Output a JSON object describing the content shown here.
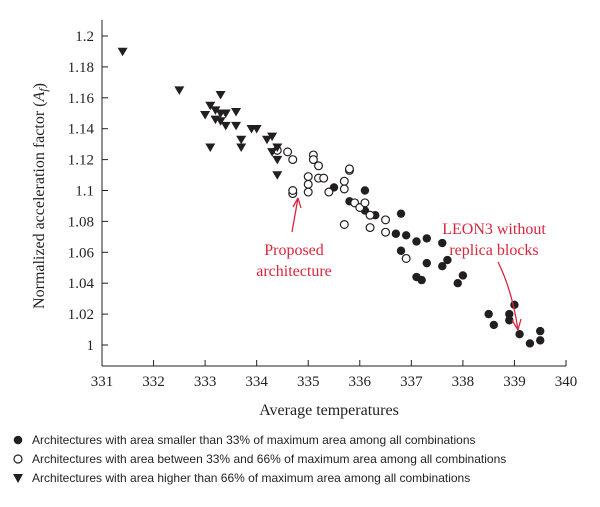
{
  "chart_data": {
    "type": "scatter",
    "xlabel": "Average temperatures",
    "ylabel": "Normalized acceleration factor (A_f)",
    "xlim": [
      331,
      340
    ],
    "ylim": [
      0.99,
      1.2
    ],
    "x_ticks": [
      "331",
      "332",
      "333",
      "334",
      "335",
      "336",
      "337",
      "338",
      "339",
      "340"
    ],
    "y_ticks": [
      "1",
      "1.02",
      "1.04",
      "1.06",
      "1.08",
      "1.1",
      "1.12",
      "1.14",
      "1.16",
      "1.18",
      "1.2"
    ],
    "grid": false,
    "legend_position": "bottom",
    "series": [
      {
        "name": "Architectures with area smaller than 33% of maximum area among all combinations",
        "marker": "filled-circle",
        "points": [
          [
            335.5,
            1.102
          ],
          [
            335.8,
            1.093
          ],
          [
            336.1,
            1.1
          ],
          [
            336.1,
            1.087
          ],
          [
            336.3,
            1.084
          ],
          [
            336.8,
            1.085
          ],
          [
            336.7,
            1.072
          ],
          [
            336.9,
            1.071
          ],
          [
            337.1,
            1.067
          ],
          [
            337.3,
            1.069
          ],
          [
            337.6,
            1.066
          ],
          [
            337.6,
            1.051
          ],
          [
            337.7,
            1.055
          ],
          [
            337.3,
            1.053
          ],
          [
            336.8,
            1.061
          ],
          [
            337.1,
            1.044
          ],
          [
            337.2,
            1.042
          ],
          [
            337.9,
            1.04
          ],
          [
            338.0,
            1.045
          ],
          [
            338.5,
            1.02
          ],
          [
            338.6,
            1.013
          ],
          [
            338.9,
            1.016
          ],
          [
            338.9,
            1.02
          ],
          [
            339.0,
            1.026
          ],
          [
            339.1,
            1.007
          ],
          [
            339.3,
            1.001
          ],
          [
            339.5,
            1.003
          ],
          [
            339.5,
            1.009
          ]
        ]
      },
      {
        "name": "Architectures with area between 33% and 66% of maximum area among all combinations",
        "marker": "open-circle",
        "points": [
          [
            334.4,
            1.126
          ],
          [
            334.6,
            1.125
          ],
          [
            334.7,
            1.12
          ],
          [
            334.7,
            1.098
          ],
          [
            334.7,
            1.1
          ],
          [
            335.0,
            1.104
          ],
          [
            335.0,
            1.109
          ],
          [
            335.0,
            1.099
          ],
          [
            335.1,
            1.123
          ],
          [
            335.1,
            1.12
          ],
          [
            335.2,
            1.116
          ],
          [
            335.2,
            1.108
          ],
          [
            335.3,
            1.108
          ],
          [
            335.4,
            1.099
          ],
          [
            335.7,
            1.106
          ],
          [
            335.7,
            1.101
          ],
          [
            335.8,
            1.113
          ],
          [
            335.8,
            1.114
          ],
          [
            335.7,
            1.078
          ],
          [
            335.9,
            1.092
          ],
          [
            336.0,
            1.089
          ],
          [
            336.1,
            1.092
          ],
          [
            336.2,
            1.084
          ],
          [
            336.2,
            1.076
          ],
          [
            336.5,
            1.081
          ],
          [
            336.5,
            1.073
          ],
          [
            336.9,
            1.056
          ]
        ]
      },
      {
        "name": "Architectures with area higher than 66% of maximum area among all combinations",
        "marker": "filled-triangle-down",
        "points": [
          [
            331.4,
            1.19
          ],
          [
            332.5,
            1.165
          ],
          [
            333.0,
            1.149
          ],
          [
            333.1,
            1.155
          ],
          [
            333.1,
            1.128
          ],
          [
            333.2,
            1.152
          ],
          [
            333.2,
            1.146
          ],
          [
            333.3,
            1.162
          ],
          [
            333.3,
            1.15
          ],
          [
            333.3,
            1.145
          ],
          [
            333.4,
            1.15
          ],
          [
            333.4,
            1.142
          ],
          [
            333.6,
            1.142
          ],
          [
            333.6,
            1.151
          ],
          [
            333.7,
            1.133
          ],
          [
            333.7,
            1.128
          ],
          [
            333.9,
            1.14
          ],
          [
            334.0,
            1.14
          ],
          [
            334.2,
            1.133
          ],
          [
            334.3,
            1.135
          ],
          [
            334.3,
            1.125
          ],
          [
            334.4,
            1.128
          ],
          [
            334.4,
            1.12
          ],
          [
            334.4,
            1.11
          ]
        ]
      }
    ],
    "annotations": [
      {
        "lines": [
          "Proposed",
          "architecture"
        ]
      },
      {
        "lines": [
          "LEON3 without",
          "replica blocks"
        ]
      }
    ]
  },
  "legend": [
    {
      "marker": "filled-circle",
      "label": "Architectures with area smaller than 33% of maximum area among all combinations"
    },
    {
      "marker": "open-circle",
      "label": "Architectures with area between 33% and 66% of maximum area among all combinations"
    },
    {
      "marker": "filled-triangle-down",
      "label": "Architectures with area higher than 66% of maximum area among all combinations"
    }
  ]
}
